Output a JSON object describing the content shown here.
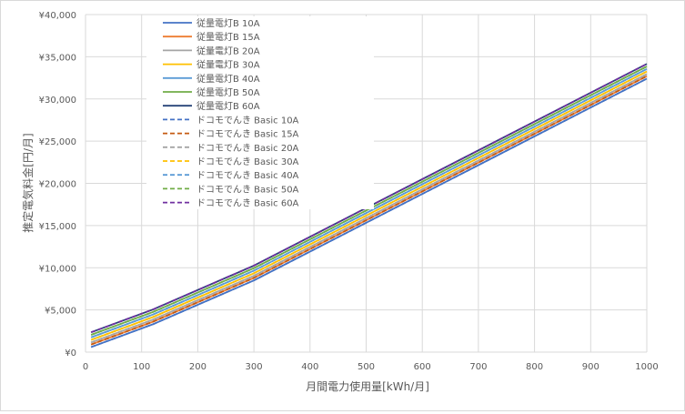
{
  "chart_data": {
    "type": "line",
    "xlabel": "月間電力使用量[kWh/月]",
    "ylabel": "推定電気料金[円/月]",
    "xlim": [
      0,
      1000
    ],
    "ylim": [
      0,
      40000
    ],
    "xticks": [
      0,
      100,
      200,
      300,
      400,
      500,
      600,
      700,
      800,
      900,
      1000
    ],
    "xtick_labels": [
      "0",
      "100",
      "200",
      "300",
      "400",
      "500",
      "600",
      "700",
      "800",
      "900",
      "1000"
    ],
    "yticks": [
      0,
      5000,
      10000,
      15000,
      20000,
      25000,
      30000,
      35000,
      40000
    ],
    "ytick_labels": [
      "¥0",
      "¥5,000",
      "¥10,000",
      "¥15,000",
      "¥20,000",
      "¥25,000",
      "¥30,000",
      "¥35,000",
      "¥40,000"
    ],
    "grid": "both",
    "legend_position": "top-left (inside plot)",
    "x": [
      10,
      120,
      300,
      1000
    ],
    "series": [
      {
        "name": "従量電灯B 10A",
        "color": "#4472c4",
        "dash": "solid",
        "values": [
          600,
          3300,
          8500,
          32400
        ]
      },
      {
        "name": "従量電灯B 15A",
        "color": "#ed7d31",
        "dash": "solid",
        "values": [
          900,
          3600,
          8800,
          32700
        ]
      },
      {
        "name": "従量電灯B 20A",
        "color": "#a5a5a5",
        "dash": "solid",
        "values": [
          1150,
          3850,
          9050,
          32950
        ]
      },
      {
        "name": "従量電灯B 30A",
        "color": "#ffc000",
        "dash": "solid",
        "values": [
          1450,
          4150,
          9350,
          33250
        ]
      },
      {
        "name": "従量電灯B 40A",
        "color": "#5b9bd5",
        "dash": "solid",
        "values": [
          1750,
          4450,
          9650,
          33550
        ]
      },
      {
        "name": "従量電灯B 50A",
        "color": "#70ad47",
        "dash": "solid",
        "values": [
          2050,
          4750,
          9950,
          33850
        ]
      },
      {
        "name": "従量電灯B 60A",
        "color": "#264478",
        "dash": "solid",
        "values": [
          2350,
          5050,
          10250,
          34150
        ]
      },
      {
        "name": "ドコモでんき Basic 10A",
        "color": "#4472c4",
        "dash": "dashed",
        "values": [
          600,
          3300,
          8500,
          32400
        ]
      },
      {
        "name": "ドコモでんき Basic 15A",
        "color": "#c55a11",
        "dash": "dashed",
        "values": [
          900,
          3600,
          8800,
          32700
        ]
      },
      {
        "name": "ドコモでんき Basic 20A",
        "color": "#a5a5a5",
        "dash": "dashed",
        "values": [
          1150,
          3850,
          9050,
          32950
        ]
      },
      {
        "name": "ドコモでんき Basic 30A",
        "color": "#ffc000",
        "dash": "dashed",
        "values": [
          1450,
          4150,
          9350,
          33250
        ]
      },
      {
        "name": "ドコモでんき Basic 40A",
        "color": "#5b9bd5",
        "dash": "dashed",
        "values": [
          1750,
          4450,
          9650,
          33550
        ]
      },
      {
        "name": "ドコモでんき Basic 50A",
        "color": "#70ad47",
        "dash": "dashed",
        "values": [
          2050,
          4750,
          9950,
          33850
        ]
      },
      {
        "name": "ドコモでんき Basic 60A",
        "color": "#7030a0",
        "dash": "dashed",
        "values": [
          2350,
          5050,
          10250,
          34150
        ]
      }
    ]
  }
}
